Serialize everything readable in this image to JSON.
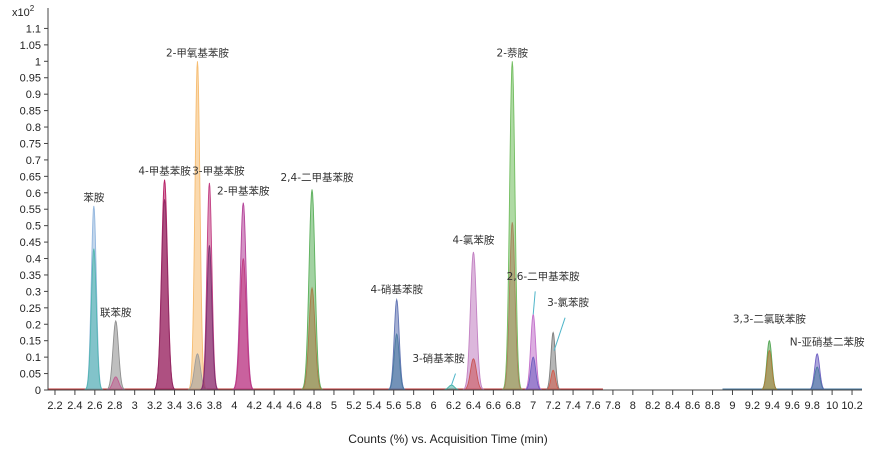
{
  "chart_data": {
    "type": "area",
    "xlabel": "Counts (%) vs. Acquisition Time (min)",
    "ylabel": "",
    "y_multiplier": "x10",
    "y_multiplier_exp": "2",
    "xlim": [
      2.13,
      10.3
    ],
    "ylim": [
      0,
      1.15
    ],
    "x_ticks": [
      2.2,
      2.4,
      2.6,
      2.8,
      3,
      3.2,
      3.4,
      3.6,
      3.8,
      4,
      4.2,
      4.4,
      4.6,
      4.8,
      5,
      5.2,
      5.4,
      5.6,
      5.8,
      6,
      6.2,
      6.4,
      6.6,
      6.8,
      7,
      7.2,
      7.4,
      7.6,
      7.8,
      8,
      8.2,
      8.4,
      8.6,
      8.8,
      9,
      9.2,
      9.4,
      9.6,
      9.8,
      10,
      10.2
    ],
    "x_tick_labels": [
      "2.2",
      "2.4",
      "2.6",
      "2.8",
      "3",
      "3.2",
      "3.4",
      "3.6",
      "3.8",
      "4",
      "4.2",
      "4.4",
      "4.6",
      "4.8",
      "5",
      "5.2",
      "5.4",
      "5.6",
      "5.8",
      "6",
      "6.2",
      "6.4",
      "6.6",
      "6.8",
      "7",
      "7.2",
      "7.4",
      "7.6",
      "7.8",
      "8",
      "8.2",
      "8.4",
      "8.6",
      "8.8",
      "9",
      "9.2",
      "9.4",
      "9.6",
      "9.8",
      "10",
      "10.2"
    ],
    "y_ticks": [
      0,
      0.05,
      0.1,
      0.15,
      0.2,
      0.25,
      0.3,
      0.35,
      0.4,
      0.45,
      0.5,
      0.55,
      0.6,
      0.65,
      0.7,
      0.75,
      0.8,
      0.85,
      0.9,
      0.95,
      1,
      1.05,
      1.1
    ],
    "y_tick_labels": [
      "0",
      "0.05",
      "0.1",
      "0.15",
      "0.2",
      "0.25",
      "0.3",
      "0.35",
      "0.4",
      "0.45",
      "0.5",
      "0.55",
      "0.6",
      "0.65",
      "0.7",
      "0.75",
      "0.8",
      "0.85",
      "0.9",
      "0.95",
      "1",
      "1.05",
      "1.1"
    ],
    "grid": false,
    "peaks": [
      {
        "x": 2.59,
        "height": 0.56,
        "width": 0.025,
        "color": "#8fb4dd"
      },
      {
        "x": 2.59,
        "height": 0.43,
        "width": 0.025,
        "color": "#4fb5ae"
      },
      {
        "x": 2.81,
        "height": 0.21,
        "width": 0.028,
        "color": "#8a8a8a"
      },
      {
        "x": 2.81,
        "height": 0.04,
        "width": 0.03,
        "color": "#c05a8e"
      },
      {
        "x": 3.3,
        "height": 0.64,
        "width": 0.03,
        "color": "#b3165f"
      },
      {
        "x": 3.3,
        "height": 0.58,
        "width": 0.03,
        "color": "#8e2a63"
      },
      {
        "x": 3.63,
        "height": 1.0,
        "width": 0.025,
        "color": "#f6b96c"
      },
      {
        "x": 3.63,
        "height": 0.11,
        "width": 0.03,
        "color": "#9b9b9b"
      },
      {
        "x": 3.75,
        "height": 0.63,
        "width": 0.025,
        "color": "#c0397e"
      },
      {
        "x": 3.75,
        "height": 0.44,
        "width": 0.025,
        "color": "#7a2e6e"
      },
      {
        "x": 4.09,
        "height": 0.57,
        "width": 0.03,
        "color": "#b13b95"
      },
      {
        "x": 4.09,
        "height": 0.4,
        "width": 0.03,
        "color": "#c0397e"
      },
      {
        "x": 4.78,
        "height": 0.61,
        "width": 0.03,
        "color": "#55ad55"
      },
      {
        "x": 4.78,
        "height": 0.31,
        "width": 0.03,
        "color": "#a87a46"
      },
      {
        "x": 5.63,
        "height": 0.275,
        "width": 0.025,
        "color": "#5b6fb0"
      },
      {
        "x": 5.63,
        "height": 0.17,
        "width": 0.025,
        "color": "#4a7aa0"
      },
      {
        "x": 6.18,
        "height": 0.015,
        "width": 0.03,
        "color": "#3fb1a6"
      },
      {
        "x": 6.4,
        "height": 0.42,
        "width": 0.03,
        "color": "#c07bc0"
      },
      {
        "x": 6.4,
        "height": 0.095,
        "width": 0.03,
        "color": "#c85050"
      },
      {
        "x": 6.79,
        "height": 1.0,
        "width": 0.027,
        "color": "#6dbb5a"
      },
      {
        "x": 6.79,
        "height": 0.51,
        "width": 0.027,
        "color": "#a8825a"
      },
      {
        "x": 7.0,
        "height": 0.23,
        "width": 0.025,
        "color": "#c06bc8"
      },
      {
        "x": 7.0,
        "height": 0.1,
        "width": 0.025,
        "color": "#6a5cc0"
      },
      {
        "x": 7.2,
        "height": 0.175,
        "width": 0.022,
        "color": "#7a7a7a"
      },
      {
        "x": 7.2,
        "height": 0.06,
        "width": 0.022,
        "color": "#d45a4a"
      },
      {
        "x": 9.37,
        "height": 0.15,
        "width": 0.025,
        "color": "#4fa34f"
      },
      {
        "x": 9.37,
        "height": 0.12,
        "width": 0.025,
        "color": "#b07a3a"
      },
      {
        "x": 9.85,
        "height": 0.11,
        "width": 0.025,
        "color": "#6a5cc0"
      },
      {
        "x": 9.85,
        "height": 0.07,
        "width": 0.025,
        "color": "#4a7aa0"
      }
    ],
    "baseline_segments": [
      {
        "x_start": 2.13,
        "x_end": 7.7,
        "color": "#c03a3a"
      },
      {
        "x_start": 8.9,
        "x_end": 10.3,
        "color": "#4a7aa0"
      }
    ],
    "annotations": [
      {
        "text": "苯胺",
        "x": 2.59,
        "y": 0.56
      },
      {
        "text": "联苯胺",
        "x": 2.81,
        "y": 0.21
      },
      {
        "text": "4-甲基苯胺",
        "x": 3.3,
        "y": 0.64
      },
      {
        "text": "2-甲氧基苯胺",
        "x": 3.63,
        "y": 1.0
      },
      {
        "text": "3-甲基苯胺",
        "x": 3.84,
        "y": 0.64
      },
      {
        "text": "2-甲基苯胺",
        "x": 4.09,
        "y": 0.58
      },
      {
        "text": "2,4-二甲基苯胺",
        "x": 4.83,
        "y": 0.62
      },
      {
        "text": "4-硝基苯胺",
        "x": 5.63,
        "y": 0.28
      },
      {
        "text": "3-硝基苯胺",
        "x": 6.05,
        "y": 0.07
      },
      {
        "text": "4-氯苯胺",
        "x": 6.4,
        "y": 0.43
      },
      {
        "text": "2-萘胺",
        "x": 6.79,
        "y": 1.0
      },
      {
        "text": "2,6-二甲基苯胺",
        "x": 7.1,
        "y": 0.32
      },
      {
        "text": "3-氯苯胺",
        "x": 7.35,
        "y": 0.24
      },
      {
        "text": "3,3-二氯联苯胺",
        "x": 9.37,
        "y": 0.19
      },
      {
        "text": "N-亚硝基二苯胺",
        "x": 9.95,
        "y": 0.12
      }
    ],
    "leaders": [
      {
        "from": [
          6.22,
          0.05
        ],
        "to": [
          6.18,
          0.015
        ]
      },
      {
        "from": [
          7.02,
          0.3
        ],
        "to": [
          7.0,
          0.23
        ]
      },
      {
        "from": [
          7.32,
          0.22
        ],
        "to": [
          7.21,
          0.12
        ]
      }
    ]
  }
}
